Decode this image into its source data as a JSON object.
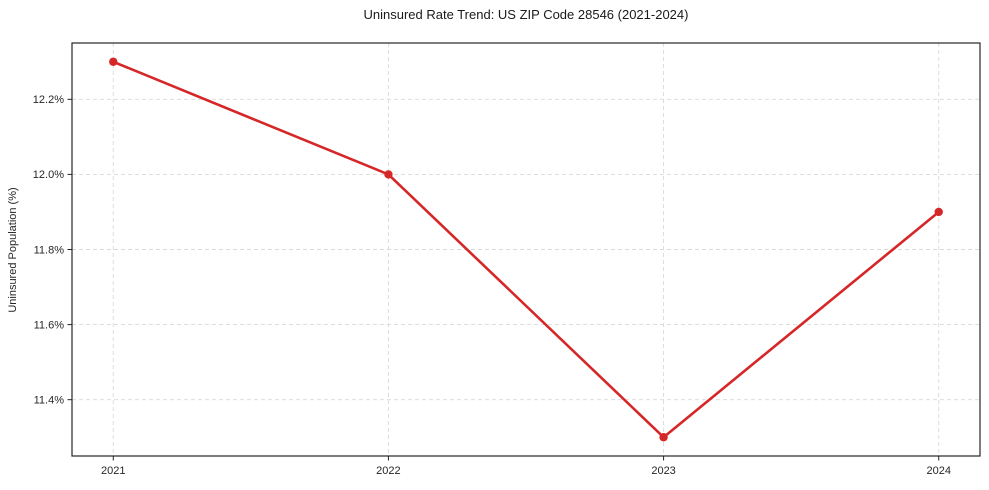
{
  "chart_data": {
    "type": "line",
    "title": "Uninsured Rate Trend: US ZIP Code 28546 (2021-2024)",
    "xlabel": "",
    "ylabel": "Uninsured Population (%)",
    "x": [
      2021,
      2022,
      2023,
      2024
    ],
    "xtick_labels": [
      "2021",
      "2022",
      "2023",
      "2024"
    ],
    "series": [
      {
        "name": "Uninsured rate",
        "values": [
          12.3,
          12.0,
          11.3,
          11.9
        ]
      }
    ],
    "ytick_values": [
      11.4,
      11.6,
      11.8,
      12.0,
      12.2
    ],
    "ytick_labels": [
      "11.4%",
      "11.6%",
      "11.8%",
      "12.0%",
      "12.2%"
    ],
    "xlim": [
      2020.85,
      2024.15
    ],
    "ylim": [
      11.25,
      12.35
    ],
    "grid": true,
    "grid_style": "dashed",
    "legend": false,
    "colors": {
      "line": "#d62728",
      "marker": "#d62728",
      "grid": "#d9d9d9",
      "spine": "#262626",
      "text": "#262626",
      "background": "#ffffff"
    }
  }
}
